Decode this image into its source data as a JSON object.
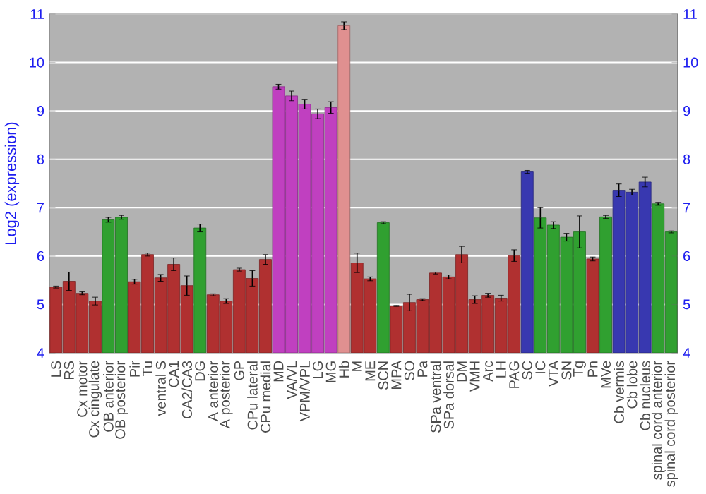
{
  "chart_data": {
    "type": "bar",
    "ylabel": "Log2 (expression)",
    "categories": [
      "LS",
      "RS",
      "Cx motor",
      "Cx cingulate",
      "OB anterior",
      "OB posterior",
      "Pir",
      "Tu",
      "ventral S",
      "CA1",
      "CA2/CA3",
      "DG",
      "A anterior",
      "A posterior",
      "GP",
      "CPu lateral",
      "CPu medial",
      "MD",
      "VA/VL",
      "VPM/VPL",
      "LG",
      "MG",
      "Hb",
      "M",
      "ME",
      "SCN",
      "MPA",
      "SO",
      "Pa",
      "SPa ventral",
      "SPa dorsal",
      "DM",
      "VMH",
      "Arc",
      "LH",
      "PAG",
      "SC",
      "IC",
      "VTA",
      "SN",
      "Tg",
      "Pn",
      "MVe",
      "Cb vermis",
      "Cb lobe",
      "Cb nucleus",
      "spinal cord anterior",
      "spinal cord posterior"
    ],
    "values": [
      5.36,
      5.48,
      5.23,
      5.07,
      6.75,
      6.8,
      5.47,
      6.03,
      5.55,
      5.83,
      5.39,
      6.58,
      5.2,
      5.07,
      5.72,
      5.54,
      5.93,
      9.5,
      9.31,
      9.14,
      8.94,
      9.07,
      10.76,
      5.86,
      5.53,
      6.69,
      4.97,
      5.04,
      5.1,
      5.65,
      5.57,
      6.03,
      5.1,
      5.19,
      5.13,
      6.01,
      7.74,
      6.79,
      6.64,
      6.39,
      6.5,
      5.94,
      6.81,
      7.36,
      7.32,
      7.53,
      7.08,
      6.5
    ],
    "errors": [
      0.02,
      0.19,
      0.03,
      0.08,
      0.05,
      0.04,
      0.05,
      0.03,
      0.07,
      0.13,
      0.2,
      0.08,
      0.02,
      0.05,
      0.03,
      0.16,
      0.1,
      0.05,
      0.1,
      0.1,
      0.1,
      0.12,
      0.08,
      0.2,
      0.04,
      0.02,
      0.01,
      0.17,
      0.02,
      0.02,
      0.04,
      0.17,
      0.08,
      0.04,
      0.06,
      0.12,
      0.03,
      0.21,
      0.07,
      0.08,
      0.33,
      0.04,
      0.03,
      0.13,
      0.06,
      0.1,
      0.03,
      0.02
    ],
    "colors": [
      "#b03030",
      "#b03030",
      "#b03030",
      "#b03030",
      "#30a030",
      "#30a030",
      "#b03030",
      "#b03030",
      "#b03030",
      "#b03030",
      "#b03030",
      "#30a030",
      "#b03030",
      "#b03030",
      "#b03030",
      "#b03030",
      "#b03030",
      "#c040c0",
      "#c040c0",
      "#c040c0",
      "#c040c0",
      "#c040c0",
      "#e09090",
      "#b03030",
      "#b03030",
      "#30a030",
      "#b03030",
      "#b03030",
      "#b03030",
      "#b03030",
      "#b03030",
      "#b03030",
      "#b03030",
      "#b03030",
      "#b03030",
      "#b03030",
      "#3838b0",
      "#30a030",
      "#30a030",
      "#30a030",
      "#30a030",
      "#b03030",
      "#30a030",
      "#3838b0",
      "#3838b0",
      "#3838b0",
      "#30a030",
      "#30a030"
    ],
    "ylim": [
      4,
      11
    ],
    "yticks": [
      4,
      5,
      6,
      7,
      8,
      9,
      10,
      11
    ],
    "y2lim": [
      4,
      11
    ],
    "y2ticks": [
      4,
      5,
      6,
      7,
      8,
      9,
      10,
      11
    ],
    "grid": "y"
  }
}
